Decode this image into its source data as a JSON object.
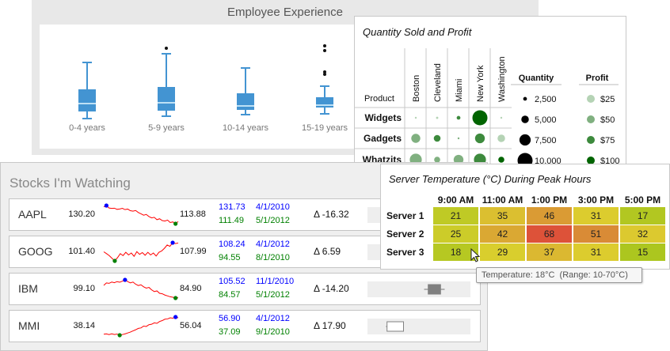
{
  "chart_data": [
    {
      "type": "box",
      "title": "Employee Experience",
      "categories": [
        "0-4 years",
        "5-9 years",
        "10-14 years",
        "15-19 years"
      ],
      "series": [
        {
          "min": 40,
          "q1": 49,
          "median": 59,
          "q3": 77,
          "max": 111,
          "outliers": []
        },
        {
          "min": 43,
          "q1": 50,
          "median": 60,
          "q3": 80,
          "max": 122,
          "outliers": [
            129
          ]
        },
        {
          "min": 45,
          "q1": 51,
          "median": 56,
          "q3": 72,
          "max": 104,
          "outliers": []
        },
        {
          "min": 46,
          "q1": 54,
          "median": 57,
          "q3": 67,
          "max": 81,
          "outliers": [
            96,
            99,
            126,
            132
          ]
        }
      ]
    },
    {
      "type": "bubble-matrix",
      "title": "Quantity Sold and Profit",
      "row_header": "Product",
      "columns": [
        "Boston",
        "Cleveland",
        "Miami",
        "New York",
        "Washington"
      ],
      "rows": [
        "Widgets",
        "Gadgets",
        "Whatzits"
      ],
      "quantity": [
        [
          500,
          1500,
          2500,
          10000,
          1000
        ],
        [
          6000,
          4500,
          1000,
          6500,
          5000
        ],
        [
          8000,
          4000,
          6500,
          8000,
          4000
        ]
      ],
      "profit": [
        [
          25,
          25,
          75,
          100,
          25
        ],
        [
          40,
          75,
          40,
          75,
          35
        ],
        [
          60,
          60,
          50,
          70,
          90
        ]
      ],
      "legend": {
        "quantity_title": "Quantity",
        "profit_title": "Profit",
        "quantity": [
          {
            "v": 2500,
            "label": "2,500"
          },
          {
            "v": 5000,
            "label": "5,000"
          },
          {
            "v": 7500,
            "label": "7,500"
          },
          {
            "v": 10000,
            "label": "10,000"
          }
        ],
        "profit": [
          {
            "v": 25,
            "label": "$25",
            "color": "#b5d3b5"
          },
          {
            "v": 50,
            "label": "$50",
            "color": "#80b080"
          },
          {
            "v": 75,
            "label": "$75",
            "color": "#3d8a3d"
          },
          {
            "v": 100,
            "label": "$100",
            "color": "#006400"
          }
        ]
      }
    },
    {
      "type": "heatmap",
      "title": "Server Temperature (°C) During Peak Hours",
      "columns": [
        "9:00 AM",
        "11:00 AM",
        "1:00 PM",
        "3:00 PM",
        "5:00 PM"
      ],
      "rows": [
        "Server 1",
        "Server 2",
        "Server 3"
      ],
      "values": [
        [
          21,
          35,
          46,
          31,
          17
        ],
        [
          25,
          42,
          68,
          51,
          32
        ],
        [
          18,
          29,
          37,
          31,
          15
        ]
      ],
      "range": [
        10,
        70
      ],
      "tooltip": "Temperature: 18°C  (Range: 10-70°C)"
    },
    {
      "type": "sparkline-table",
      "title": "Stocks I'm Watching",
      "stocks": [
        {
          "ticker": "AAPL",
          "start": "130.20",
          "end": "113.88",
          "high": "131.73",
          "high_date": "4/1/2010",
          "low": "111.49",
          "low_date": "5/1/2012",
          "delta": "Δ -16.32",
          "values": [
            130.2,
            131.73,
            129,
            128.5,
            128.8,
            127.5,
            127.9,
            128.6,
            127.2,
            127.8,
            126,
            125.5,
            126.2,
            124,
            122.5,
            121,
            121.8,
            119.5,
            118,
            118.6,
            116,
            117,
            115,
            114.5,
            115.5,
            112.8,
            113.5,
            111.49,
            113.88
          ],
          "bullet": null
        },
        {
          "ticker": "GOOG",
          "start": "101.40",
          "end": "107.99",
          "high": "108.24",
          "high_date": "4/1/2012",
          "low": "94.55",
          "low_date": "8/1/2010",
          "delta": "Δ 6.59",
          "values": [
            101.4,
            100,
            98.5,
            96.5,
            94.55,
            97,
            100,
            98.5,
            101,
            99,
            100.5,
            98,
            101.5,
            99.5,
            100.8,
            98.8,
            101,
            99,
            100.5,
            98.2,
            101,
            102,
            104,
            106.5,
            105.5,
            108.24,
            107.6,
            107.99
          ],
          "bullet": null
        },
        {
          "ticker": "IBM",
          "start": "99.10",
          "end": "84.90",
          "high": "105.52",
          "high_date": "11/1/2010",
          "low": "84.57",
          "low_date": "5/1/2012",
          "delta": "Δ -14.20",
          "values": [
            99.1,
            102,
            101.5,
            103,
            102.2,
            103.5,
            102.8,
            104,
            105.52,
            103.5,
            102,
            103,
            100.5,
            99,
            99.8,
            97.5,
            96,
            96.8,
            94,
            92,
            92.8,
            90,
            89.5,
            88,
            87,
            86,
            85.5,
            84.57,
            84.9
          ],
          "bullet": {
            "whisker": [
              0.55,
              0.75
            ],
            "box": [
              0.59,
              0.71
            ],
            "filled": true
          }
        },
        {
          "ticker": "MMI",
          "start": "38.14",
          "end": "56.04",
          "high": "56.90",
          "high_date": "4/1/2012",
          "low": "37.09",
          "low_date": "9/1/2010",
          "delta": "Δ 17.90",
          "values": [
            38.14,
            38.5,
            37.8,
            38.6,
            37.9,
            38.3,
            37.09,
            37.8,
            38.5,
            39.5,
            40.5,
            41.8,
            43,
            44.5,
            45,
            47,
            46.6,
            48.5,
            49,
            50.5,
            50,
            52,
            53,
            54.5,
            54.8,
            56,
            55.6,
            56.9,
            56.04
          ],
          "bullet": {
            "whisker": [
              0.18,
              0.35
            ],
            "box": [
              0.19,
              0.35
            ],
            "filled": false
          }
        }
      ],
      "colors": {
        "line": "#ff0000",
        "high": "#0000ff",
        "low": "#008000"
      }
    }
  ]
}
